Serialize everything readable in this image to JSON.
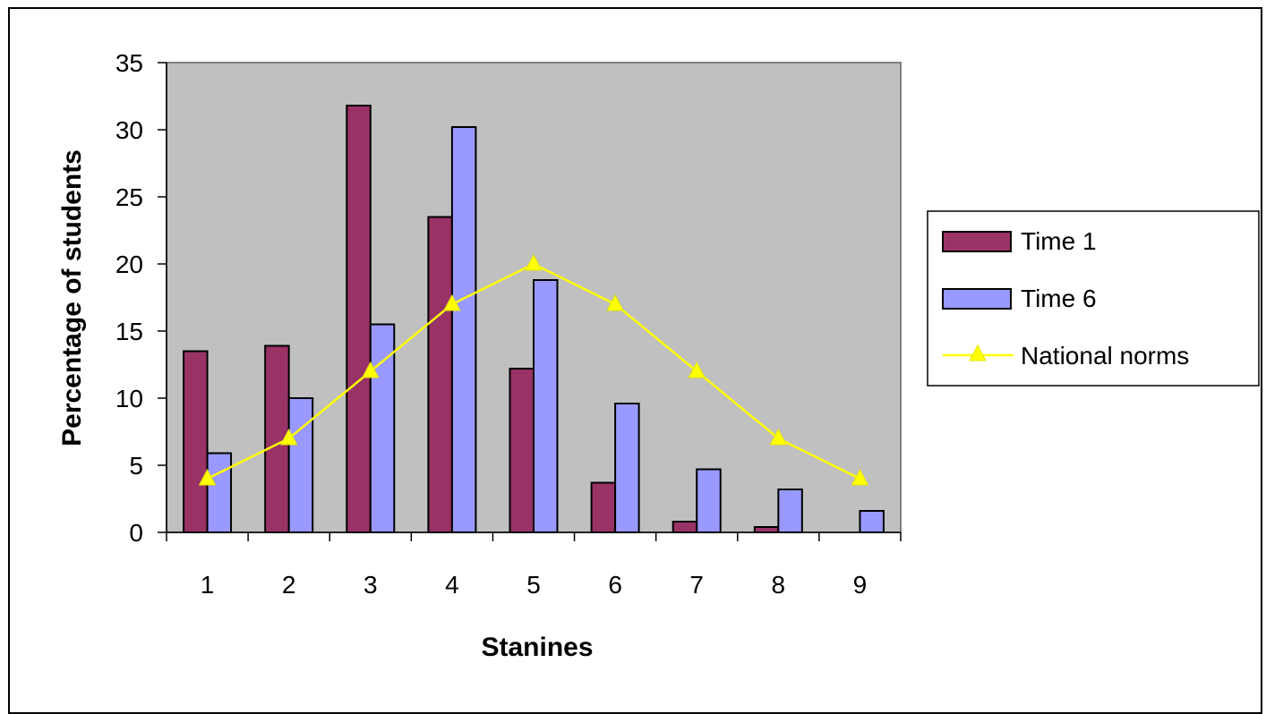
{
  "chart_data": {
    "type": "bar",
    "title": "",
    "xlabel": "Stanines",
    "ylabel": "Percentage of students",
    "categories": [
      "1",
      "2",
      "3",
      "4",
      "5",
      "6",
      "7",
      "8",
      "9"
    ],
    "ylim": [
      0,
      35
    ],
    "yticks": [
      "0",
      "5",
      "10",
      "15",
      "20",
      "25",
      "30",
      "35"
    ],
    "grid": false,
    "plot_background": "#c0c0c0",
    "legend_position": "right",
    "series": [
      {
        "name": "Time 1",
        "kind": "bar",
        "color": "#993366",
        "values": [
          13.5,
          13.9,
          31.8,
          23.5,
          12.2,
          3.7,
          0.8,
          0.4,
          0
        ]
      },
      {
        "name": "Time 6",
        "kind": "bar",
        "color": "#9999ff",
        "values": [
          5.9,
          10.0,
          15.5,
          30.2,
          18.8,
          9.6,
          4.7,
          3.2,
          1.6
        ]
      },
      {
        "name": "National norms",
        "kind": "line",
        "marker": "triangle",
        "color": "#ffff00",
        "values": [
          4,
          7,
          12,
          17,
          20,
          17,
          12,
          7,
          4
        ]
      }
    ]
  }
}
